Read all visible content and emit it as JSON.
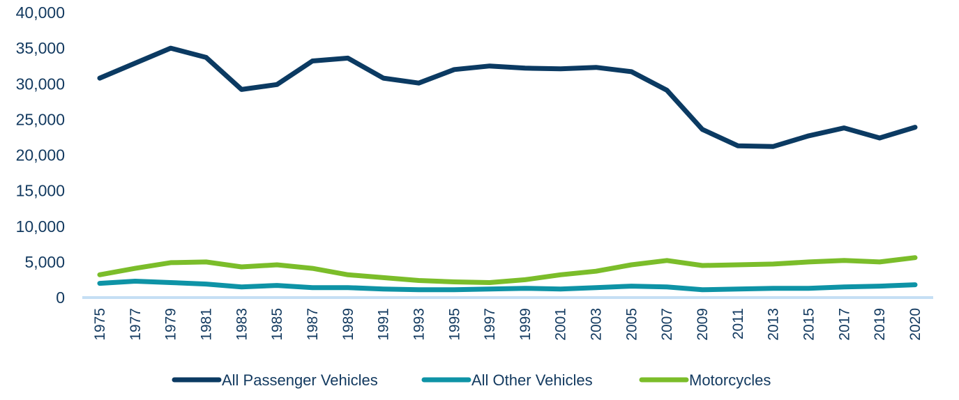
{
  "chart_data": {
    "type": "line",
    "title": "",
    "xlabel": "",
    "ylabel": "",
    "ylim": [
      0,
      40000
    ],
    "yticks": [
      0,
      5000,
      10000,
      15000,
      20000,
      25000,
      30000,
      35000,
      40000
    ],
    "ytick_labels": [
      "0",
      "5,000",
      "10,000",
      "15,000",
      "20,000",
      "25,000",
      "30,000",
      "35,000",
      "40,000"
    ],
    "grid": false,
    "legend_position": "bottom",
    "categories": [
      "1975",
      "1977",
      "1979",
      "1981",
      "1983",
      "1985",
      "1987",
      "1989",
      "1991",
      "1993",
      "1995",
      "1997",
      "1999",
      "2001",
      "2003",
      "2005",
      "2007",
      "2009",
      "2011",
      "2013",
      "2015",
      "2017",
      "2019",
      "2020"
    ],
    "series": [
      {
        "name": "All Passenger Vehicles",
        "color": "#0b3a62",
        "values": [
          30800,
          32900,
          35000,
          33700,
          29200,
          29900,
          33200,
          33600,
          30800,
          30100,
          32000,
          32500,
          32200,
          32100,
          32300,
          31700,
          29100,
          23600,
          21300,
          21200,
          22700,
          23800,
          22400,
          23900
        ]
      },
      {
        "name": "All Other Vehicles",
        "color": "#0e93a6",
        "values": [
          2000,
          2300,
          2100,
          1900,
          1500,
          1700,
          1400,
          1400,
          1200,
          1100,
          1100,
          1200,
          1300,
          1200,
          1400,
          1600,
          1500,
          1100,
          1200,
          1300,
          1300,
          1500,
          1600,
          1800
        ]
      },
      {
        "name": "Motorcycles",
        "color": "#7bbd2a",
        "values": [
          3200,
          4100,
          4900,
          5000,
          4300,
          4600,
          4100,
          3200,
          2800,
          2400,
          2200,
          2100,
          2500,
          3200,
          3700,
          4600,
          5200,
          4500,
          4600,
          4700,
          5000,
          5200,
          5000,
          5600
        ]
      }
    ],
    "axis_color": "#c5dff4"
  }
}
